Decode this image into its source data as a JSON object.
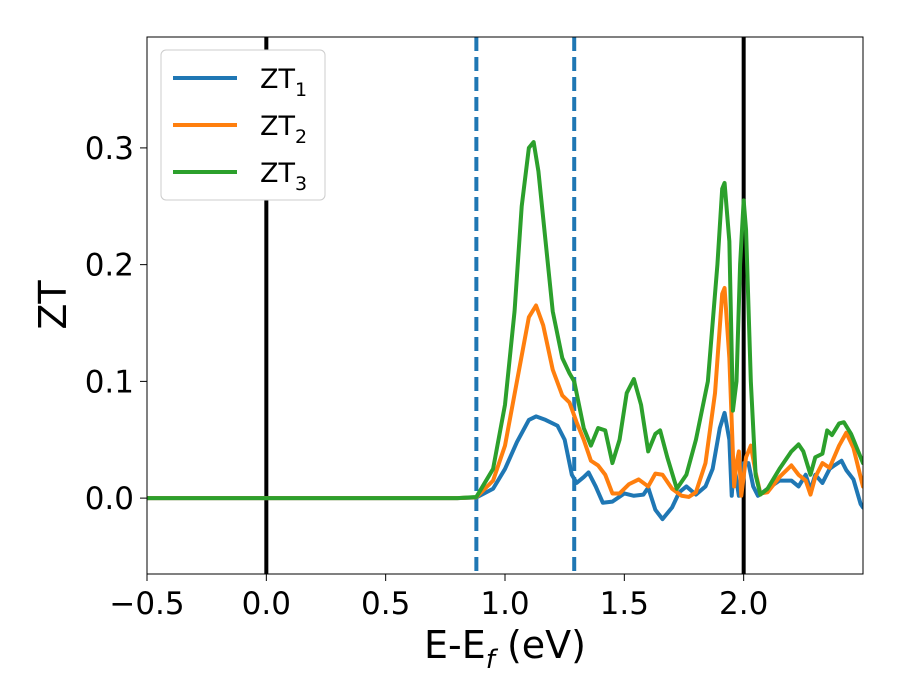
{
  "chart_data": {
    "type": "line",
    "xlabel": {
      "main": "E-E",
      "sub": "f",
      "unit": " (eV)"
    },
    "ylabel": "ZT",
    "xlim": [
      -0.5,
      2.5
    ],
    "ylim": [
      -0.065,
      0.395
    ],
    "xticks": [
      -0.5,
      0.0,
      0.5,
      1.0,
      1.5,
      2.0
    ],
    "xtick_labels": [
      "−0.5",
      "0.0",
      "0.5",
      "1.0",
      "1.5",
      "2.0"
    ],
    "yticks": [
      0.0,
      0.1,
      0.2,
      0.3
    ],
    "ytick_labels": [
      "0.0",
      "0.1",
      "0.2",
      "0.3"
    ],
    "grid": false,
    "legend_position": "top-left",
    "vlines": [
      {
        "x": 0.0,
        "style": "solid",
        "color": "#000000"
      },
      {
        "x": 2.0,
        "style": "solid",
        "color": "#000000"
      },
      {
        "x": 0.88,
        "style": "dashed",
        "color": "#1f77b4"
      },
      {
        "x": 1.29,
        "style": "dashed",
        "color": "#1f77b4"
      }
    ],
    "series": [
      {
        "name": "ZT",
        "sub": "1",
        "color": "#1f77b4",
        "points": [
          [
            -0.5,
            0
          ],
          [
            0.8,
            0
          ],
          [
            0.88,
            0.0005
          ],
          [
            0.95,
            0.008
          ],
          [
            1.0,
            0.025
          ],
          [
            1.05,
            0.048
          ],
          [
            1.1,
            0.067
          ],
          [
            1.13,
            0.07
          ],
          [
            1.17,
            0.067
          ],
          [
            1.22,
            0.062
          ],
          [
            1.25,
            0.05
          ],
          [
            1.28,
            0.02
          ],
          [
            1.3,
            0.013
          ],
          [
            1.33,
            0.018
          ],
          [
            1.35,
            0.022
          ],
          [
            1.38,
            0.01
          ],
          [
            1.41,
            -0.004
          ],
          [
            1.45,
            -0.003
          ],
          [
            1.5,
            0.004
          ],
          [
            1.54,
            0.002
          ],
          [
            1.58,
            0.003
          ],
          [
            1.6,
            0.009
          ],
          [
            1.63,
            -0.01
          ],
          [
            1.66,
            -0.018
          ],
          [
            1.7,
            -0.008
          ],
          [
            1.73,
            0.005
          ],
          [
            1.76,
            0.01
          ],
          [
            1.8,
            0.003
          ],
          [
            1.84,
            0.01
          ],
          [
            1.87,
            0.025
          ],
          [
            1.9,
            0.06
          ],
          [
            1.92,
            0.073
          ],
          [
            1.94,
            0.05
          ],
          [
            1.95,
            0.002
          ],
          [
            1.96,
            0.03
          ],
          [
            1.97,
            0.015
          ],
          [
            1.98,
            0.002
          ],
          [
            2.0,
            0.03
          ],
          [
            2.02,
            0.03
          ],
          [
            2.04,
            0.01
          ],
          [
            2.06,
            0.002
          ],
          [
            2.1,
            0.008
          ],
          [
            2.15,
            0.015
          ],
          [
            2.2,
            0.015
          ],
          [
            2.23,
            0.01
          ],
          [
            2.26,
            0.02
          ],
          [
            2.28,
            0.007
          ],
          [
            2.3,
            0.02
          ],
          [
            2.33,
            0.013
          ],
          [
            2.36,
            0.025
          ],
          [
            2.38,
            0.028
          ],
          [
            2.41,
            0.032
          ],
          [
            2.43,
            0.024
          ],
          [
            2.46,
            0.016
          ],
          [
            2.49,
            -0.005
          ],
          [
            2.5,
            -0.008
          ]
        ]
      },
      {
        "name": "ZT",
        "sub": "2",
        "color": "#ff7f0e",
        "points": [
          [
            -0.5,
            0
          ],
          [
            0.8,
            0
          ],
          [
            0.88,
            0.0008
          ],
          [
            0.95,
            0.015
          ],
          [
            1.0,
            0.045
          ],
          [
            1.05,
            0.1
          ],
          [
            1.1,
            0.155
          ],
          [
            1.13,
            0.165
          ],
          [
            1.16,
            0.148
          ],
          [
            1.2,
            0.11
          ],
          [
            1.24,
            0.088
          ],
          [
            1.27,
            0.082
          ],
          [
            1.3,
            0.065
          ],
          [
            1.33,
            0.05
          ],
          [
            1.36,
            0.032
          ],
          [
            1.39,
            0.028
          ],
          [
            1.42,
            0.02
          ],
          [
            1.45,
            0.004
          ],
          [
            1.48,
            0.004
          ],
          [
            1.52,
            0.012
          ],
          [
            1.56,
            0.016
          ],
          [
            1.6,
            0.01
          ],
          [
            1.63,
            0.021
          ],
          [
            1.66,
            0.02
          ],
          [
            1.7,
            0.008
          ],
          [
            1.74,
            0.002
          ],
          [
            1.77,
            0.001
          ],
          [
            1.8,
            0.005
          ],
          [
            1.84,
            0.03
          ],
          [
            1.88,
            0.09
          ],
          [
            1.91,
            0.175
          ],
          [
            1.92,
            0.18
          ],
          [
            1.94,
            0.12
          ],
          [
            1.96,
            0.01
          ],
          [
            1.97,
            0.03
          ],
          [
            1.98,
            0.04
          ],
          [
            1.99,
            0.002
          ],
          [
            2.01,
            0.035
          ],
          [
            2.03,
            0.045
          ],
          [
            2.05,
            0.022
          ],
          [
            2.07,
            0.004
          ],
          [
            2.1,
            0.005
          ],
          [
            2.15,
            0.018
          ],
          [
            2.2,
            0.028
          ],
          [
            2.23,
            0.02
          ],
          [
            2.26,
            0.015
          ],
          [
            2.28,
            0.003
          ],
          [
            2.3,
            0.018
          ],
          [
            2.33,
            0.03
          ],
          [
            2.36,
            0.026
          ],
          [
            2.4,
            0.045
          ],
          [
            2.43,
            0.056
          ],
          [
            2.46,
            0.043
          ],
          [
            2.49,
            0.018
          ],
          [
            2.5,
            0.01
          ]
        ]
      },
      {
        "name": "ZT",
        "sub": "3",
        "color": "#2ca02c",
        "points": [
          [
            -0.5,
            0
          ],
          [
            0.8,
            0
          ],
          [
            0.88,
            0.001
          ],
          [
            0.95,
            0.025
          ],
          [
            1.0,
            0.08
          ],
          [
            1.04,
            0.16
          ],
          [
            1.07,
            0.25
          ],
          [
            1.1,
            0.3
          ],
          [
            1.12,
            0.305
          ],
          [
            1.14,
            0.28
          ],
          [
            1.17,
            0.22
          ],
          [
            1.2,
            0.16
          ],
          [
            1.24,
            0.12
          ],
          [
            1.27,
            0.107
          ],
          [
            1.29,
            0.1
          ],
          [
            1.31,
            0.08
          ],
          [
            1.33,
            0.06
          ],
          [
            1.36,
            0.045
          ],
          [
            1.39,
            0.06
          ],
          [
            1.42,
            0.058
          ],
          [
            1.45,
            0.03
          ],
          [
            1.48,
            0.05
          ],
          [
            1.51,
            0.09
          ],
          [
            1.54,
            0.102
          ],
          [
            1.57,
            0.08
          ],
          [
            1.6,
            0.04
          ],
          [
            1.63,
            0.055
          ],
          [
            1.65,
            0.058
          ],
          [
            1.68,
            0.035
          ],
          [
            1.72,
            0.008
          ],
          [
            1.76,
            0.02
          ],
          [
            1.8,
            0.05
          ],
          [
            1.85,
            0.1
          ],
          [
            1.89,
            0.2
          ],
          [
            1.91,
            0.265
          ],
          [
            1.92,
            0.27
          ],
          [
            1.94,
            0.22
          ],
          [
            1.955,
            0.075
          ],
          [
            1.97,
            0.1
          ],
          [
            1.985,
            0.2
          ],
          [
            2.0,
            0.255
          ],
          [
            2.01,
            0.23
          ],
          [
            2.03,
            0.1
          ],
          [
            2.05,
            0.02
          ],
          [
            2.07,
            0.003
          ],
          [
            2.1,
            0.008
          ],
          [
            2.15,
            0.025
          ],
          [
            2.2,
            0.04
          ],
          [
            2.23,
            0.046
          ],
          [
            2.25,
            0.04
          ],
          [
            2.28,
            0.02
          ],
          [
            2.3,
            0.035
          ],
          [
            2.33,
            0.038
          ],
          [
            2.35,
            0.058
          ],
          [
            2.37,
            0.054
          ],
          [
            2.4,
            0.064
          ],
          [
            2.42,
            0.065
          ],
          [
            2.45,
            0.055
          ],
          [
            2.48,
            0.04
          ],
          [
            2.5,
            0.03
          ]
        ]
      }
    ]
  }
}
